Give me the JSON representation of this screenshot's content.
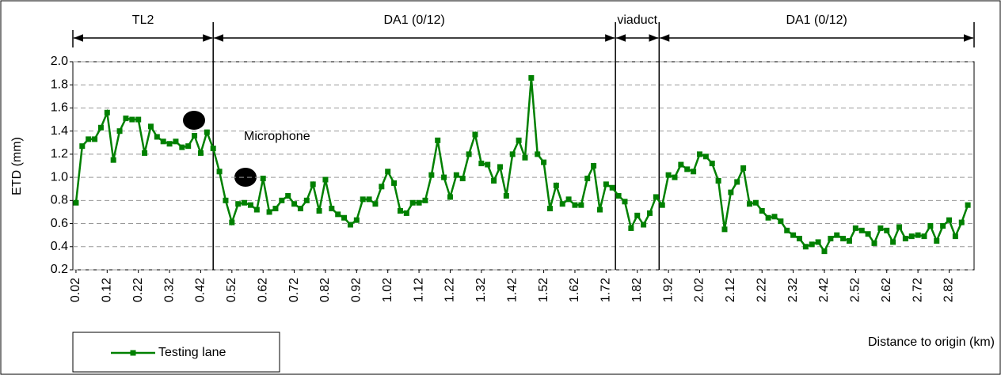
{
  "chart_data": {
    "type": "line",
    "y_label": "ETD (mm)",
    "x_label": "Distance to origin (km)",
    "annotation": "Microphone",
    "sections": [
      {
        "label": "TL2",
        "from": 0.01,
        "to": 0.46
      },
      {
        "label": "DA1 (0/12)",
        "from": 0.46,
        "to": 1.75
      },
      {
        "label": "viaduct",
        "from": 1.75,
        "to": 1.89
      },
      {
        "label": "DA1 (0/12)",
        "from": 1.89,
        "to": 2.9
      }
    ],
    "x": [
      0.02,
      0.04,
      0.06,
      0.08,
      0.1,
      0.12,
      0.14,
      0.16,
      0.18,
      0.2,
      0.22,
      0.24,
      0.26,
      0.28,
      0.3,
      0.32,
      0.34,
      0.36,
      0.38,
      0.4,
      0.42,
      0.44,
      0.46,
      0.48,
      0.5,
      0.52,
      0.54,
      0.56,
      0.58,
      0.6,
      0.62,
      0.64,
      0.66,
      0.68,
      0.7,
      0.72,
      0.74,
      0.76,
      0.78,
      0.8,
      0.82,
      0.84,
      0.86,
      0.88,
      0.9,
      0.92,
      0.94,
      0.96,
      0.98,
      1.0,
      1.02,
      1.04,
      1.06,
      1.08,
      1.1,
      1.12,
      1.14,
      1.16,
      1.18,
      1.2,
      1.22,
      1.24,
      1.26,
      1.28,
      1.3,
      1.32,
      1.34,
      1.36,
      1.38,
      1.4,
      1.42,
      1.44,
      1.46,
      1.48,
      1.5,
      1.52,
      1.54,
      1.56,
      1.58,
      1.6,
      1.62,
      1.64,
      1.66,
      1.68,
      1.7,
      1.72,
      1.74,
      1.76,
      1.78,
      1.8,
      1.82,
      1.84,
      1.86,
      1.88,
      1.9,
      1.92,
      1.94,
      1.96,
      1.98,
      2.0,
      2.02,
      2.04,
      2.06,
      2.08,
      2.1,
      2.12,
      2.14,
      2.16,
      2.18,
      2.2,
      2.22,
      2.24,
      2.26,
      2.28,
      2.3,
      2.32,
      2.34,
      2.36,
      2.38,
      2.4,
      2.42,
      2.44,
      2.46,
      2.48,
      2.5,
      2.52,
      2.54,
      2.56,
      2.58,
      2.6,
      2.62,
      2.64,
      2.66,
      2.68,
      2.7,
      2.72,
      2.74,
      2.76,
      2.78,
      2.8,
      2.82,
      2.84,
      2.86,
      2.88
    ],
    "series": [
      {
        "name": "Testing lane",
        "color": "#008000",
        "values": [
          0.78,
          1.27,
          1.33,
          1.33,
          1.43,
          1.56,
          1.15,
          1.4,
          1.51,
          1.5,
          1.5,
          1.21,
          1.44,
          1.35,
          1.31,
          1.29,
          1.31,
          1.26,
          1.27,
          1.36,
          1.21,
          1.39,
          1.25,
          1.05,
          0.8,
          0.61,
          0.77,
          0.78,
          0.76,
          0.72,
          0.99,
          0.7,
          0.73,
          0.8,
          0.84,
          0.77,
          0.73,
          0.8,
          0.94,
          0.71,
          0.98,
          0.73,
          0.68,
          0.65,
          0.59,
          0.63,
          0.81,
          0.81,
          0.77,
          0.92,
          1.05,
          0.95,
          0.71,
          0.69,
          0.78,
          0.78,
          0.8,
          1.02,
          1.32,
          1.0,
          0.83,
          1.02,
          0.99,
          1.2,
          1.37,
          1.12,
          1.11,
          0.97,
          1.09,
          0.84,
          1.2,
          1.32,
          1.17,
          1.86,
          1.2,
          1.13,
          0.73,
          0.93,
          0.77,
          0.81,
          0.76,
          0.76,
          0.99,
          1.1,
          0.72,
          0.94,
          0.91,
          0.84,
          0.79,
          0.56,
          0.67,
          0.59,
          0.69,
          0.83,
          0.76,
          1.02,
          1.0,
          1.11,
          1.07,
          1.05,
          1.2,
          1.18,
          1.12,
          0.97,
          0.55,
          0.87,
          0.96,
          1.08,
          0.77,
          0.78,
          0.71,
          0.65,
          0.66,
          0.62,
          0.54,
          0.5,
          0.47,
          0.4,
          0.42,
          0.44,
          0.36,
          0.47,
          0.5,
          0.47,
          0.45,
          0.56,
          0.54,
          0.51,
          0.43,
          0.56,
          0.54,
          0.44,
          0.57,
          0.47,
          0.49,
          0.5,
          0.49,
          0.58,
          0.45,
          0.58,
          0.63,
          0.49,
          0.61,
          0.76
        ]
      }
    ],
    "xlim": [
      0.01,
      2.9
    ],
    "ylim": [
      0.2,
      2.0
    ],
    "xticks": [
      0.02,
      0.12,
      0.22,
      0.32,
      0.42,
      0.52,
      0.62,
      0.72,
      0.82,
      0.92,
      1.02,
      1.12,
      1.22,
      1.32,
      1.42,
      1.52,
      1.62,
      1.72,
      1.82,
      1.92,
      2.02,
      2.12,
      2.22,
      2.32,
      2.42,
      2.52,
      2.62,
      2.72,
      2.82
    ],
    "yticks": [
      0.2,
      0.4,
      0.6,
      0.8,
      {
        "value": 1,
        "label": "1.0"
      },
      1.2,
      1.4,
      1.6,
      1.8,
      {
        "value": 2,
        "label": "2.0"
      }
    ],
    "grid": true,
    "legend": "bottom-left"
  }
}
